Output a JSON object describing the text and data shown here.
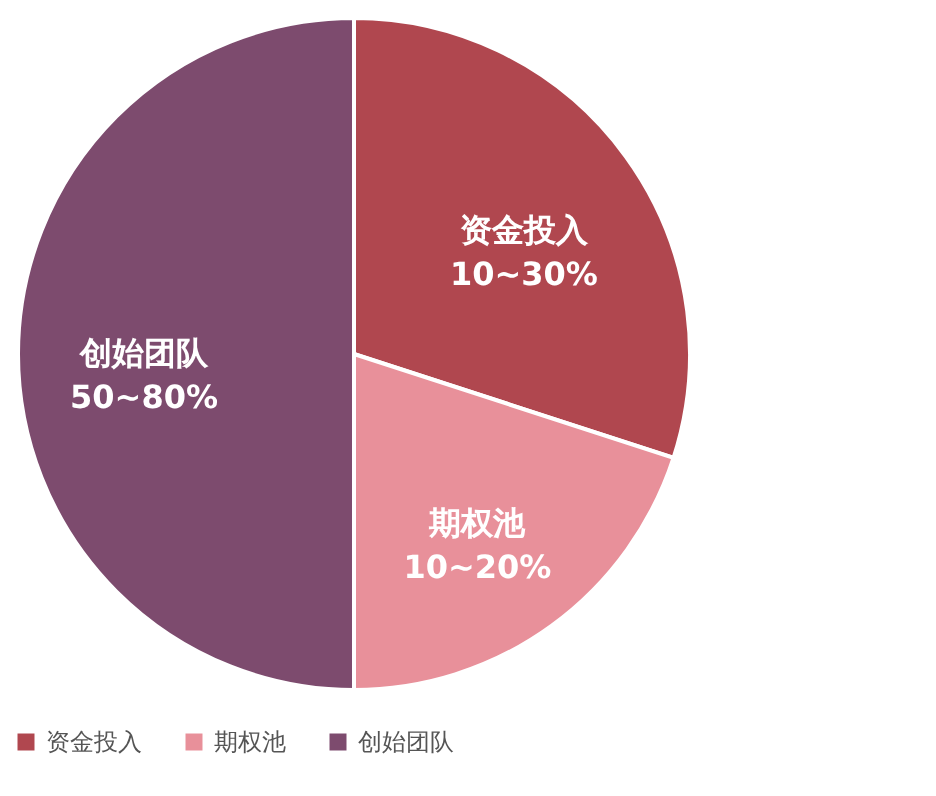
{
  "chart_data": {
    "type": "pie",
    "categories": [
      "资金投入",
      "期权池",
      "创始团队"
    ],
    "values": [
      30,
      20,
      50
    ],
    "value_labels": [
      "10~30%",
      "10~20%",
      "50~80%"
    ],
    "colors": [
      "#b0474f",
      "#e8909a",
      "#7d4b6e"
    ],
    "legend": "bottom"
  }
}
